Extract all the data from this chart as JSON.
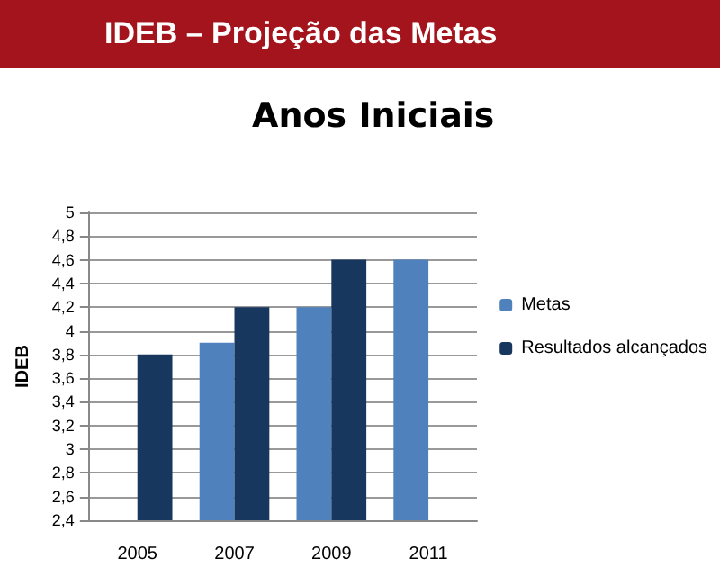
{
  "chart_data": {
    "type": "bar",
    "title": "IDEB – Projeção das Metas",
    "subtitle": "Anos Iniciais",
    "ylabel": "IDEB",
    "categories": [
      "2005",
      "2007",
      "2009",
      "2011"
    ],
    "series": [
      {
        "name": "Metas",
        "color": "#4f81bd",
        "values": [
          null,
          3.9,
          4.2,
          4.6
        ]
      },
      {
        "name": "Resultados alcançados",
        "color": "#17375e",
        "values": [
          3.8,
          4.2,
          4.6,
          null
        ]
      }
    ],
    "ylim": [
      2.4,
      5
    ],
    "yticks": [
      {
        "value": 2.4,
        "label": "2,4"
      },
      {
        "value": 2.6,
        "label": "2,6"
      },
      {
        "value": 2.8,
        "label": "2,8"
      },
      3,
      {
        "value": 3.2,
        "label": "3,2"
      },
      {
        "value": 3.4,
        "label": "3,4"
      },
      {
        "value": 3.6,
        "label": "3,6"
      },
      {
        "value": 3.8,
        "label": "3,8"
      },
      4,
      {
        "value": 4.2,
        "label": "4,2"
      },
      {
        "value": 4.4,
        "label": "4,4"
      },
      {
        "value": 4.6,
        "label": "4,6"
      },
      {
        "value": 4.8,
        "label": "4,8"
      },
      5
    ],
    "grid": "y",
    "legend": "right"
  }
}
